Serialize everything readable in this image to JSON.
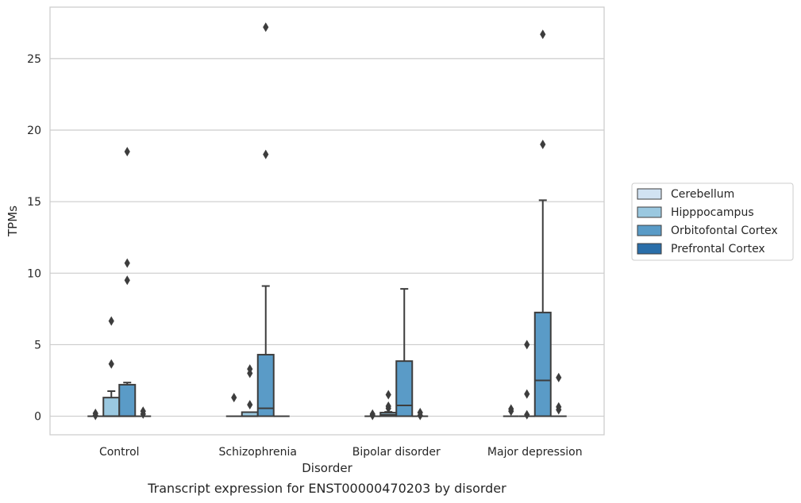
{
  "chart_data": {
    "type": "box",
    "title": "",
    "caption": "Transcript expression for ENST00000470203 by disorder",
    "xlabel": "Disorder",
    "ylabel": "TPMs",
    "ylim": [
      -1.3,
      28.6
    ],
    "yticks": [
      0,
      5,
      10,
      15,
      20,
      25
    ],
    "grid": "horizontal",
    "legend_position": "right",
    "categories": [
      "Control",
      "Schizophrenia",
      "Bipolar disorder",
      "Major depression"
    ],
    "series": [
      {
        "name": "Cerebellum",
        "color": "#d1e2f2",
        "boxes": [
          {
            "category": "Control",
            "q1": 0,
            "median": 0,
            "q3": 0,
            "whisker_low": 0,
            "whisker_high": 0,
            "outliers": [
              0.2,
              0.05
            ]
          },
          {
            "category": "Schizophrenia",
            "q1": 0,
            "median": 0,
            "q3": 0,
            "whisker_low": 0,
            "whisker_high": 0,
            "outliers": [
              1.3
            ]
          },
          {
            "category": "Bipolar disorder",
            "q1": 0,
            "median": 0,
            "q3": 0,
            "whisker_low": 0,
            "whisker_high": 0,
            "outliers": [
              0.15,
              0.05
            ]
          },
          {
            "category": "Major depression",
            "q1": 0,
            "median": 0,
            "q3": 0,
            "whisker_low": 0,
            "whisker_high": 0,
            "outliers": [
              0.5,
              0.35
            ]
          }
        ]
      },
      {
        "name": "Hipppocampus",
        "color": "#9ac8e0",
        "boxes": [
          {
            "category": "Control",
            "q1": 0,
            "median": 0,
            "q3": 1.3,
            "whisker_low": 0,
            "whisker_high": 1.75,
            "outliers": [
              3.65,
              6.65
            ]
          },
          {
            "category": "Schizophrenia",
            "q1": 0,
            "median": 0,
            "q3": 0.28,
            "whisker_low": 0,
            "whisker_high": 0.28,
            "outliers": [
              0.8,
              3.0,
              3.3
            ]
          },
          {
            "category": "Bipolar disorder",
            "q1": 0,
            "median": 0.1,
            "q3": 0.25,
            "whisker_low": 0,
            "whisker_high": 0.3,
            "outliers": [
              0.55,
              0.7,
              1.5
            ]
          },
          {
            "category": "Major depression",
            "q1": 0,
            "median": 0,
            "q3": 0,
            "whisker_low": 0,
            "whisker_high": 0,
            "outliers": [
              0.1,
              1.55,
              5.0
            ]
          }
        ]
      },
      {
        "name": "Orbitofontal Cortex",
        "color": "#5a9bc7",
        "boxes": [
          {
            "category": "Control",
            "q1": 0,
            "median": 0,
            "q3": 2.2,
            "whisker_low": 0,
            "whisker_high": 2.35,
            "outliers": [
              9.5,
              10.7,
              18.5
            ]
          },
          {
            "category": "Schizophrenia",
            "q1": 0,
            "median": 0.55,
            "q3": 4.3,
            "whisker_low": 0,
            "whisker_high": 9.1,
            "outliers": [
              18.3,
              27.2
            ]
          },
          {
            "category": "Bipolar disorder",
            "q1": 0,
            "median": 0.75,
            "q3": 3.85,
            "whisker_low": 0,
            "whisker_high": 8.9,
            "outliers": []
          },
          {
            "category": "Major depression",
            "q1": 0,
            "median": 2.5,
            "q3": 7.25,
            "whisker_low": 0,
            "whisker_high": 15.1,
            "outliers": [
              19.0,
              26.7
            ]
          }
        ]
      },
      {
        "name": "Prefrontal Cortex",
        "color": "#2a6ea9",
        "boxes": [
          {
            "category": "Control",
            "q1": 0,
            "median": 0,
            "q3": 0,
            "whisker_low": 0,
            "whisker_high": 0,
            "outliers": [
              0.15,
              0.35
            ]
          },
          {
            "category": "Schizophrenia",
            "q1": 0,
            "median": 0,
            "q3": 0,
            "whisker_low": 0,
            "whisker_high": 0,
            "outliers": []
          },
          {
            "category": "Bipolar disorder",
            "q1": 0,
            "median": 0,
            "q3": 0,
            "whisker_low": 0,
            "whisker_high": 0,
            "outliers": [
              0.05,
              0.25
            ]
          },
          {
            "category": "Major depression",
            "q1": 0,
            "median": 0,
            "q3": 0,
            "whisker_low": 0,
            "whisker_high": 0,
            "outliers": [
              0.45,
              0.65,
              2.7
            ]
          }
        ]
      }
    ]
  }
}
